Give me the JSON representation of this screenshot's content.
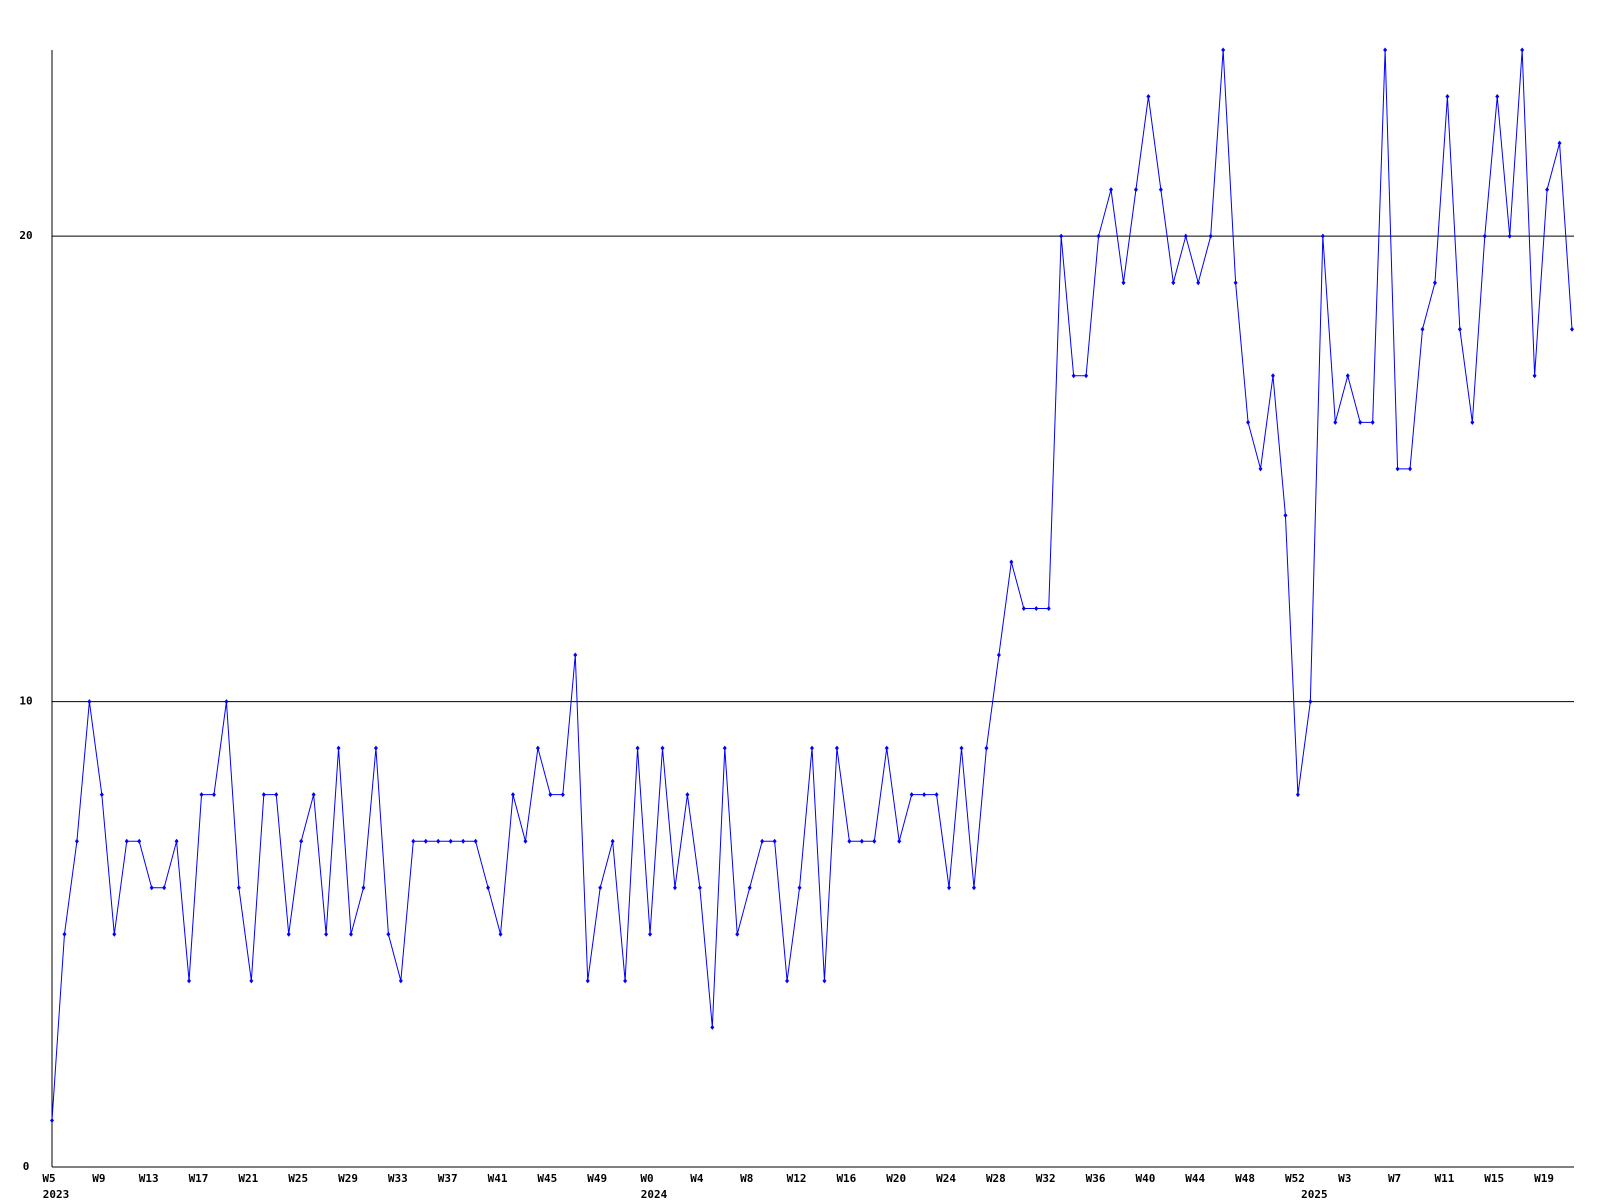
{
  "chart_data": {
    "type": "line",
    "categories": [
      "W5",
      null,
      null,
      null,
      "W9",
      null,
      null,
      null,
      "W13",
      null,
      null,
      null,
      "W17",
      null,
      null,
      null,
      "W21",
      null,
      null,
      null,
      "W25",
      null,
      null,
      null,
      "W29",
      null,
      null,
      null,
      "W33",
      null,
      null,
      null,
      "W37",
      null,
      null,
      null,
      "W41",
      null,
      null,
      null,
      "W45",
      null,
      null,
      null,
      "W49",
      null,
      null,
      null,
      "W0",
      null,
      null,
      null,
      "W4",
      null,
      null,
      null,
      "W8",
      null,
      null,
      null,
      "W12",
      null,
      null,
      null,
      "W16",
      null,
      null,
      null,
      "W20",
      null,
      null,
      null,
      "W24",
      null,
      null,
      null,
      "W28",
      null,
      null,
      null,
      "W32",
      null,
      null,
      null,
      "W36",
      null,
      null,
      null,
      "W40",
      null,
      null,
      null,
      "W44",
      null,
      null,
      null,
      "W48",
      null,
      null,
      null,
      "W52",
      null,
      null,
      null,
      "W3",
      null,
      null,
      null,
      "W7",
      null,
      null,
      null,
      "W11",
      null,
      null,
      null,
      "W15",
      null,
      null,
      null,
      "W19",
      null,
      null
    ],
    "year_labels": [
      "2023",
      null,
      null,
      null,
      null,
      null,
      null,
      null,
      null,
      null,
      null,
      null,
      null,
      null,
      null,
      null,
      null,
      null,
      null,
      null,
      null,
      null,
      null,
      null,
      null,
      null,
      null,
      null,
      null,
      null,
      null,
      null,
      null,
      null,
      null,
      null,
      null,
      null,
      null,
      null,
      null,
      null,
      null,
      null,
      null,
      null,
      null,
      null,
      "2024",
      null,
      null,
      null,
      null,
      null,
      null,
      null,
      null,
      null,
      null,
      null,
      null,
      null,
      null,
      null,
      null,
      null,
      null,
      null,
      null,
      null,
      null,
      null,
      null,
      null,
      null,
      null,
      null,
      null,
      null,
      null,
      null,
      null,
      null,
      null,
      null,
      null,
      null,
      null,
      null,
      null,
      null,
      null,
      null,
      null,
      null,
      null,
      null,
      null,
      null,
      null,
      null,
      "2025",
      null,
      null,
      null,
      null,
      null,
      null,
      null,
      null,
      null,
      null,
      null,
      null,
      null,
      null,
      null,
      null,
      null,
      null,
      null,
      null,
      null
    ],
    "series": [
      {
        "color": "#0000ff",
        "values": [
          1,
          5,
          7,
          10,
          8,
          5,
          7,
          7,
          6,
          6,
          7,
          4,
          8,
          8,
          10,
          6,
          4,
          8,
          8,
          5,
          7,
          8,
          5,
          9,
          5,
          6,
          9,
          5,
          4,
          7,
          7,
          7,
          7,
          7,
          7,
          6,
          5,
          8,
          7,
          9,
          8,
          8,
          11,
          4,
          6,
          7,
          4,
          9,
          5,
          9,
          6,
          8,
          6,
          3,
          9,
          5,
          6,
          7,
          7,
          4,
          6,
          9,
          4,
          9,
          7,
          7,
          7,
          9,
          7,
          8,
          8,
          8,
          6,
          9,
          6,
          9,
          11,
          13,
          12,
          12,
          12,
          20,
          17,
          17,
          20,
          21,
          19,
          21,
          23,
          21,
          19,
          20,
          19,
          20,
          24,
          19,
          16,
          15,
          17,
          14,
          8,
          10,
          20,
          16,
          17,
          16,
          16,
          24,
          15,
          15,
          18,
          19,
          23,
          18,
          16,
          20,
          23,
          20,
          24,
          17,
          21,
          22,
          18
        ]
      }
    ],
    "ylim": [
      0,
      24
    ],
    "yticks": [
      0,
      10,
      20
    ],
    "grid": true
  }
}
